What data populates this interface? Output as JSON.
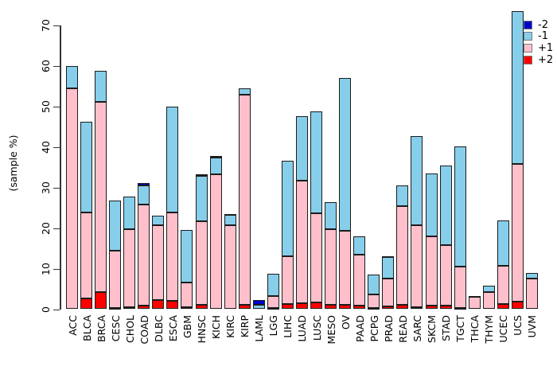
{
  "figure": {
    "ylabel": "(sample %)"
  },
  "chart_data": {
    "type": "bar",
    "stacked": true,
    "title": "",
    "xlabel": "",
    "ylabel": "(sample %)",
    "ylim": [
      0,
      70
    ],
    "yticks": [
      0,
      10,
      20,
      30,
      40,
      50,
      60,
      70
    ],
    "grid": false,
    "legend_position": "top-right",
    "stack_order_bottom_to_top": [
      "+2",
      "+1",
      "-1",
      "-2"
    ],
    "categories": [
      "ACC",
      "BLCA",
      "BRCA",
      "CESC",
      "CHOL",
      "COAD",
      "DLBC",
      "ESCA",
      "GBM",
      "HNSC",
      "KICH",
      "KIRC",
      "KIRP",
      "LAML",
      "LGG",
      "LIHC",
      "LUAD",
      "LUSC",
      "MESO",
      "OV",
      "PAAD",
      "PCPG",
      "PRAD",
      "READ",
      "SARC",
      "SKCM",
      "STAD",
      "TGCT",
      "THCA",
      "THYM",
      "UCEC",
      "UCS",
      "UVM"
    ],
    "series": [
      {
        "name": "-2",
        "color": "#0000CD",
        "values": [
          0,
          0,
          0,
          0,
          0,
          0.6,
          0,
          0,
          0,
          0.3,
          0.3,
          0.2,
          0,
          1.1,
          0,
          0,
          0,
          0,
          0,
          0,
          0,
          0,
          0.3,
          0,
          0,
          0,
          0,
          0,
          0,
          0,
          0,
          0,
          0
        ]
      },
      {
        "name": "-1",
        "color": "#87CEEB",
        "values": [
          5.6,
          22.3,
          7.7,
          12.3,
          8.1,
          4.6,
          2.3,
          26.1,
          12.9,
          11.3,
          4.3,
          2.5,
          1.5,
          1.1,
          5.6,
          23.6,
          15.8,
          25.2,
          6.8,
          37.7,
          4.5,
          4.9,
          5.2,
          5.1,
          22.1,
          15.5,
          19.5,
          29.7,
          0.3,
          1.5,
          11.1,
          37.7,
          1.4
        ]
      },
      {
        "name": "+1",
        "color": "#FFC0CB",
        "values": [
          54.4,
          21.3,
          46.8,
          14.3,
          19.2,
          25.1,
          18.4,
          21.9,
          6.1,
          20.6,
          33.2,
          20.7,
          52.0,
          0,
          2.9,
          11.8,
          30.4,
          22.0,
          18.6,
          18.3,
          12.7,
          3.3,
          6.9,
          24.4,
          20.2,
          17.1,
          15.1,
          10.2,
          3.0,
          4.2,
          9.4,
          34.0,
          7.6
        ]
      },
      {
        "name": "+2",
        "color": "#FF0000",
        "values": [
          0,
          2.6,
          4.3,
          0.2,
          0.5,
          0.8,
          2.3,
          2.0,
          0.5,
          1.0,
          0,
          0,
          1.0,
          0,
          0.3,
          1.3,
          1.4,
          1.6,
          1.1,
          1.0,
          0.8,
          0.3,
          0.7,
          1.0,
          0.5,
          0.8,
          0.8,
          0.3,
          0,
          0,
          1.3,
          1.8,
          0
        ]
      }
    ],
    "totals": [
      60.0,
      46.2,
      58.8,
      26.8,
      27.8,
      31.1,
      23.0,
      50.0,
      19.5,
      33.2,
      37.8,
      23.4,
      54.5,
      2.2,
      8.8,
      36.7,
      47.6,
      48.8,
      26.5,
      57.0,
      18.0,
      8.5,
      13.1,
      30.5,
      42.8,
      33.4,
      35.4,
      40.2,
      3.3,
      5.7,
      21.8,
      73.5,
      9.0
    ],
    "legend": [
      {
        "label": "-2",
        "color": "#0000CD"
      },
      {
        "label": "-1",
        "color": "#87CEEB"
      },
      {
        "label": "+1",
        "color": "#FFC0CB"
      },
      {
        "label": "+2",
        "color": "#FF0000"
      }
    ]
  }
}
